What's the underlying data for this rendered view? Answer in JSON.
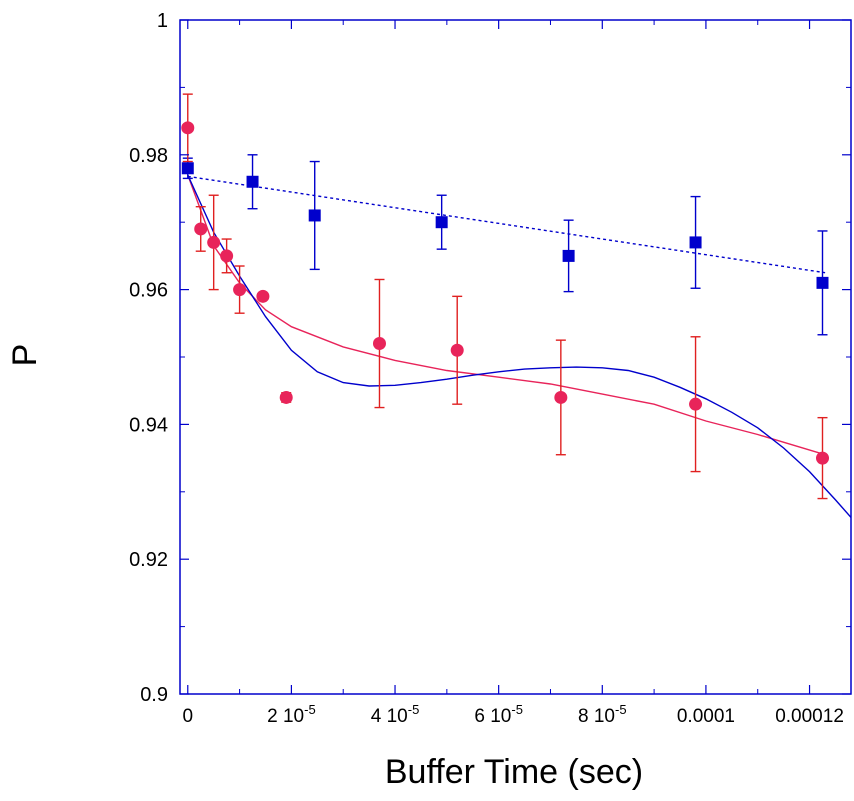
{
  "chart_data": {
    "type": "scatter",
    "title": "",
    "xlabel": "Buffer Time  (sec)",
    "ylabel": "P",
    "xlim": [
      -1.5e-06,
      0.000128
    ],
    "ylim": [
      0.9,
      1.0
    ],
    "grid": false,
    "legend": "none",
    "colors": {
      "axes": "#0000cc",
      "blue_series": "#0000cc",
      "red_series": "#e8245a",
      "red_errorbar": "#e02020",
      "red_fit": "#e8245a",
      "blue_fit": "#0000cc"
    },
    "y_ticks": [
      {
        "value": 0.9,
        "label": "0.9"
      },
      {
        "value": 0.92,
        "label": "0.92"
      },
      {
        "value": 0.94,
        "label": "0.94"
      },
      {
        "value": 0.96,
        "label": "0.96"
      },
      {
        "value": 0.98,
        "label": "0.98"
      },
      {
        "value": 1.0,
        "label": "1"
      }
    ],
    "x_ticks": [
      {
        "value": 0,
        "mant": "0",
        "exp": ""
      },
      {
        "value": 2e-05,
        "mant": "2 10",
        "exp": "-5"
      },
      {
        "value": 4e-05,
        "mant": "4 10",
        "exp": "-5"
      },
      {
        "value": 6e-05,
        "mant": "6 10",
        "exp": "-5"
      },
      {
        "value": 8e-05,
        "mant": "8 10",
        "exp": "-5"
      },
      {
        "value": 0.0001,
        "mant": "0.0001",
        "exp": ""
      },
      {
        "value": 0.00012,
        "mant": "0.00012",
        "exp": ""
      }
    ],
    "series": [
      {
        "marker": "square",
        "color": "#0000cc",
        "x": [
          0,
          1.25e-05,
          2.45e-05,
          4.9e-05,
          7.35e-05,
          9.8e-05,
          0.0001225
        ],
        "y": [
          0.978,
          0.976,
          0.971,
          0.97,
          0.965,
          0.967,
          0.961
        ],
        "err": [
          0.0015,
          0.004,
          0.008,
          0.004,
          0.0053,
          0.0068,
          0.0077
        ]
      },
      {
        "marker": "circle",
        "color": "#e8245a",
        "x": [
          0,
          2.5e-06,
          5e-06,
          7.5e-06,
          1e-05,
          1.45e-05,
          1.9e-05,
          3.7e-05,
          5.2e-05,
          7.2e-05,
          9.8e-05,
          0.0001225
        ],
        "y": [
          0.984,
          0.969,
          0.967,
          0.965,
          0.96,
          0.959,
          0.944,
          0.952,
          0.951,
          0.944,
          0.943,
          0.935
        ],
        "err": [
          0.005,
          0.0033,
          0.007,
          0.0025,
          0.0035,
          0,
          0.0007,
          0.0095,
          0.008,
          0.0085,
          0.01,
          0.006
        ]
      }
    ],
    "fits": [
      {
        "style": "dotted",
        "color": "#0000cc",
        "x": [
          0,
          0.000123
        ],
        "y": [
          0.9768,
          0.9625
        ]
      },
      {
        "style": "solid",
        "color": "#e8245a",
        "x": [
          0,
          5e-06,
          1e-05,
          1.5e-05,
          2e-05,
          3e-05,
          4e-05,
          5e-05,
          6e-05,
          7e-05,
          8e-05,
          9e-05,
          0.0001,
          0.00011,
          0.000123
        ],
        "y": [
          0.977,
          0.9665,
          0.961,
          0.957,
          0.9545,
          0.9515,
          0.9495,
          0.948,
          0.947,
          0.946,
          0.9445,
          0.943,
          0.9405,
          0.9385,
          0.9355
        ]
      },
      {
        "style": "solid",
        "color": "#0000cc",
        "x": [
          0,
          5e-06,
          1e-05,
          1.5e-05,
          2e-05,
          2.5e-05,
          3e-05,
          3.5e-05,
          4e-05,
          4.5e-05,
          5e-05,
          5.5e-05,
          6e-05,
          6.5e-05,
          7e-05,
          7.5e-05,
          8e-05,
          8.5e-05,
          9e-05,
          9.5e-05,
          0.0001,
          0.000105,
          0.00011,
          0.000115,
          0.00012,
          0.000125,
          0.000128
        ],
        "y": [
          0.977,
          0.9685,
          0.962,
          0.956,
          0.951,
          0.9478,
          0.9462,
          0.9457,
          0.9458,
          0.9462,
          0.9467,
          0.9473,
          0.9478,
          0.9482,
          0.9484,
          0.9485,
          0.9484,
          0.948,
          0.947,
          0.9455,
          0.9438,
          0.9418,
          0.9395,
          0.9365,
          0.933,
          0.9288,
          0.9262
        ]
      }
    ]
  }
}
